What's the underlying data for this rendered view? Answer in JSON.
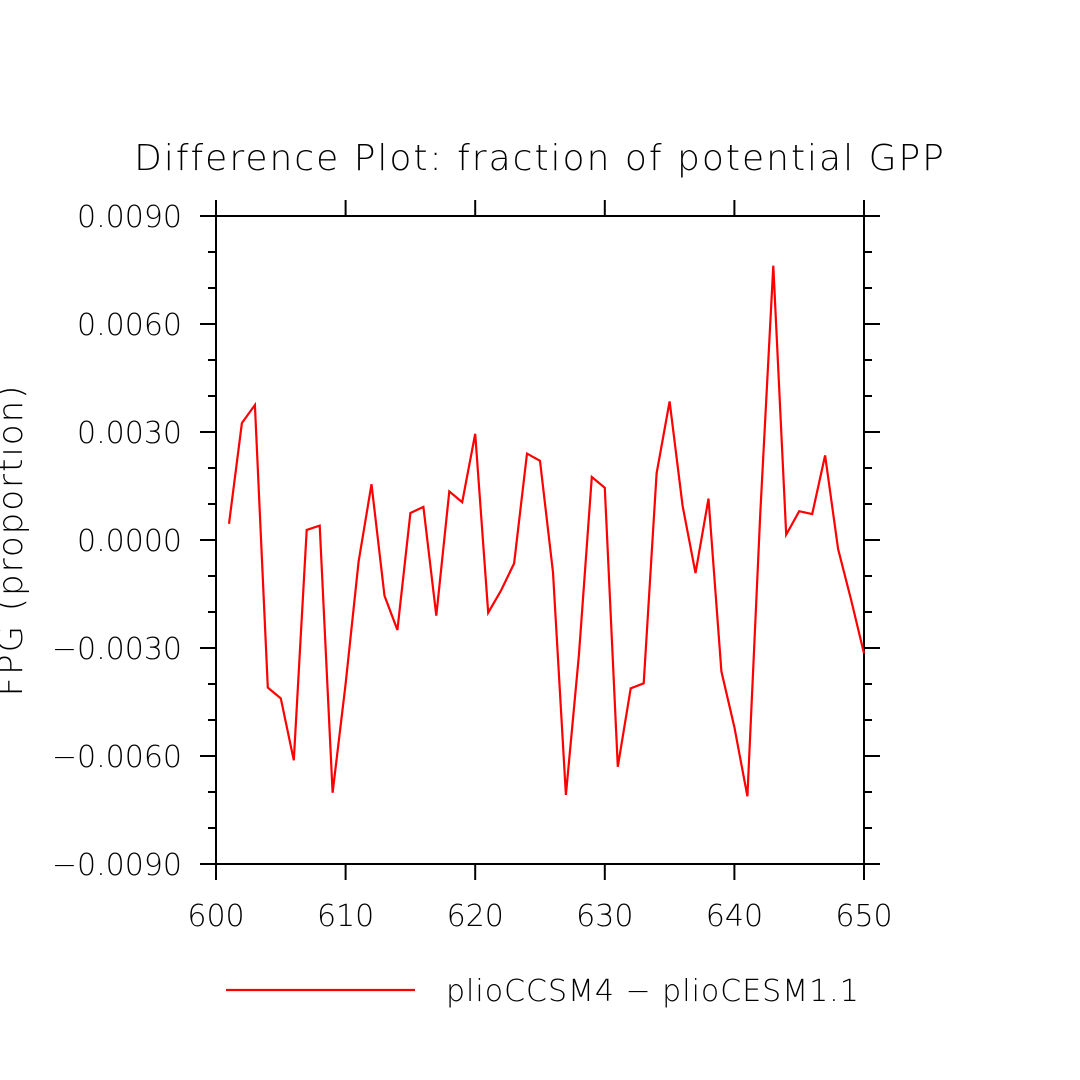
{
  "chart_data": {
    "type": "line",
    "title": "Difference Plot: fraction of potential GPP",
    "xlabel": "",
    "ylabel": "FPG   (proportion)",
    "xlim": [
      600,
      650
    ],
    "ylim": [
      -0.009,
      0.009
    ],
    "x_ticks": [
      "600",
      "610",
      "620",
      "630",
      "640",
      "650"
    ],
    "y_ticks": [
      "-0.0090",
      "-0.0060",
      "-0.0030",
      "0.0000",
      "0.0030",
      "0.0060",
      "0.0090"
    ],
    "legend": {
      "placement": "bottom"
    },
    "series": [
      {
        "name": "plioCCSM4 - plioCESM1.1",
        "color": "#ff0000",
        "x": [
          601,
          602,
          603,
          604,
          605,
          606,
          607,
          608,
          609,
          610,
          611,
          612,
          613,
          614,
          615,
          616,
          617,
          618,
          619,
          620,
          621,
          622,
          623,
          624,
          625,
          626,
          627,
          628,
          629,
          630,
          631,
          632,
          633,
          634,
          635,
          636,
          637,
          638,
          639,
          640,
          641,
          642,
          643,
          644,
          645,
          646,
          647,
          648,
          649,
          650
        ],
        "y": [
          0.00045,
          0.00325,
          0.00375,
          -0.0041,
          -0.0044,
          -0.00612,
          0.00028,
          0.0004,
          -0.00702,
          -0.004,
          -0.0006,
          0.00155,
          -0.00155,
          -0.0025,
          0.00075,
          0.00092,
          -0.0021,
          0.00135,
          0.00105,
          0.00295,
          -0.00202,
          -0.0014,
          -0.00065,
          0.0024,
          0.0022,
          -0.0009,
          -0.00708,
          -0.0032,
          0.00175,
          0.00145,
          -0.0063,
          -0.00412,
          -0.00398,
          0.00185,
          0.00385,
          0.00095,
          -0.00092,
          0.00115,
          -0.00365,
          -0.0052,
          -0.00712,
          0.00075,
          0.00762,
          0.00015,
          0.0008,
          0.00072,
          0.00235,
          -0.00025,
          -0.00165,
          -0.00315
        ]
      }
    ]
  }
}
